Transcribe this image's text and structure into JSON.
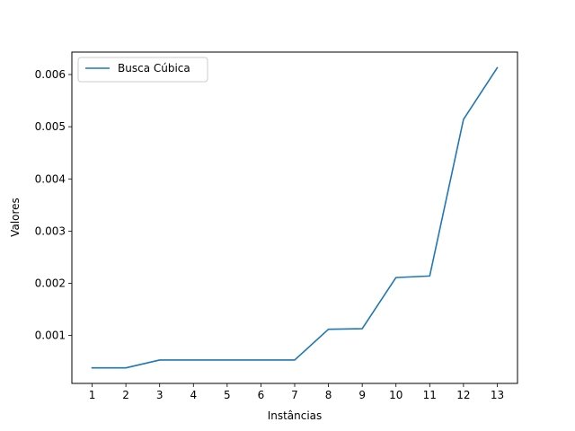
{
  "chart_data": {
    "type": "line",
    "title": "",
    "xlabel": "Instâncias",
    "ylabel": "Valores",
    "x": [
      1,
      2,
      3,
      4,
      5,
      6,
      7,
      8,
      9,
      10,
      11,
      12,
      13
    ],
    "x_ticks": [
      "1",
      "2",
      "3",
      "4",
      "5",
      "6",
      "7",
      "8",
      "9",
      "10",
      "11",
      "12",
      "13"
    ],
    "y_ticks": [
      "0.001",
      "0.002",
      "0.003",
      "0.004",
      "0.005",
      "0.006"
    ],
    "y_tick_values": [
      0.001,
      0.002,
      0.003,
      0.004,
      0.005,
      0.006
    ],
    "xlim": [
      0.4,
      13.6
    ],
    "ylim": [
      8.2e-05,
      0.00643
    ],
    "grid": false,
    "legend_position": "top-left",
    "series": [
      {
        "name": "Busca Cúbica",
        "color": "#1f77b4",
        "values": [
          0.00038,
          0.00038,
          0.00053,
          0.00053,
          0.00053,
          0.00053,
          0.00053,
          0.00112,
          0.00113,
          0.00211,
          0.00214,
          0.00514,
          0.00613
        ]
      }
    ]
  }
}
